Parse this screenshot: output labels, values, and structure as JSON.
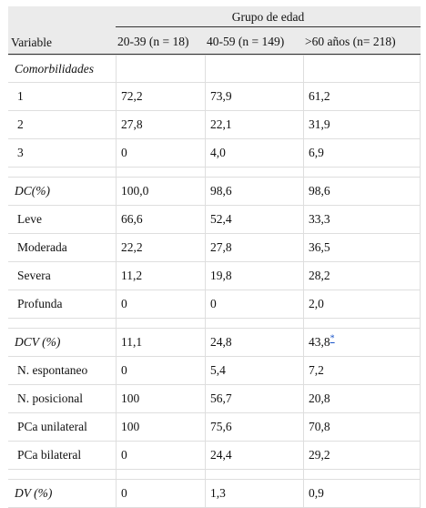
{
  "table": {
    "group_header": "Grupo de edad",
    "variable_header": "Variable",
    "age_groups": [
      "20-39 (n = 18)",
      "40-59 (n = 149)",
      ">60 años (n= 218)"
    ],
    "sections": [
      {
        "title": "Comorbilidades",
        "values": [
          "",
          "",
          ""
        ],
        "rows": [
          {
            "label": "1",
            "values": [
              "72,2",
              "73,9",
              "61,2"
            ]
          },
          {
            "label": "2",
            "values": [
              "27,8",
              "22,1",
              "31,9"
            ]
          },
          {
            "label": "3",
            "values": [
              "0",
              "4,0",
              "6,9"
            ]
          }
        ]
      },
      {
        "title": "DC(%)",
        "values": [
          "100,0",
          "98,6",
          "98,6"
        ],
        "rows": [
          {
            "label": "Leve",
            "values": [
              "66,6",
              "52,4",
              "33,3"
            ]
          },
          {
            "label": "Moderada",
            "values": [
              "22,2",
              "27,8",
              "36,5"
            ]
          },
          {
            "label": "Severa",
            "values": [
              "11,2",
              "19,8",
              "28,2"
            ]
          },
          {
            "label": "Profunda",
            "values": [
              "0",
              "0",
              "2,0"
            ]
          }
        ]
      },
      {
        "title": "DCV (%)",
        "values": [
          "11,1",
          "24,8",
          "43,8"
        ],
        "footnote_mark": "*",
        "rows": [
          {
            "label": "N. espontaneo",
            "values": [
              "0",
              "5,4",
              "7,2"
            ]
          },
          {
            "label": "N. posicional",
            "values": [
              "100",
              "56,7",
              "20,8"
            ]
          },
          {
            "label": "PCa unilateral",
            "values": [
              "100",
              "75,6",
              "70,8"
            ]
          },
          {
            "label": "PCa bilateral",
            "values": [
              "0",
              "24,4",
              "29,2"
            ]
          }
        ]
      },
      {
        "title": "DV (%)",
        "values": [
          "0",
          "1,3",
          "0,9"
        ],
        "rows": []
      }
    ]
  }
}
